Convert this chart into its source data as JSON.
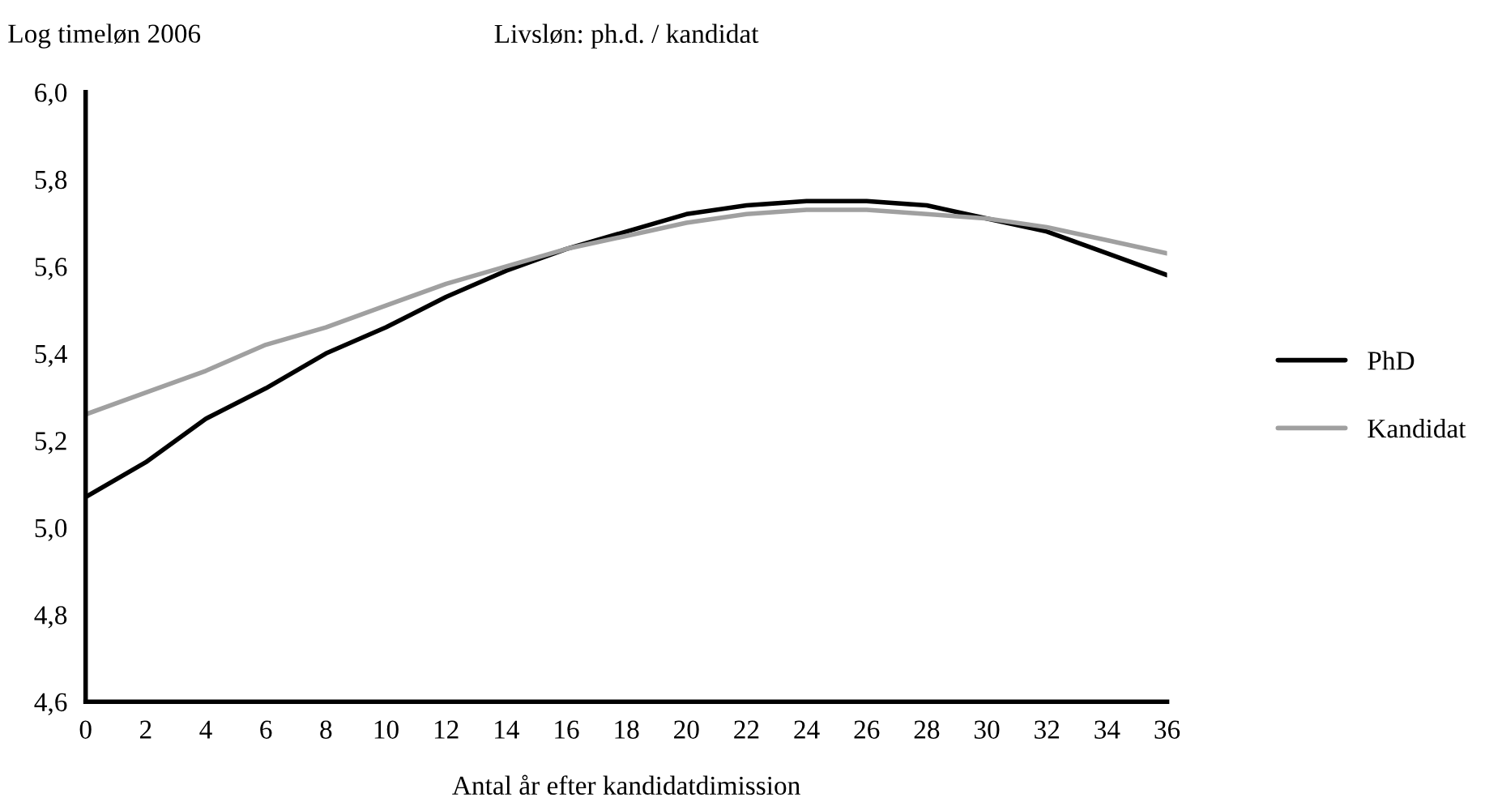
{
  "chart_data": {
    "type": "line",
    "title": "Livsløn: ph.d. / kandidat",
    "ylabel": "Log timeløn 2006",
    "xlabel": "Antal år efter kandidatdimission",
    "x": [
      0,
      2,
      4,
      6,
      8,
      10,
      12,
      14,
      16,
      18,
      20,
      22,
      24,
      26,
      28,
      30,
      32,
      34,
      36
    ],
    "series": [
      {
        "name": "PhD",
        "color": "#000000",
        "values": [
          5.07,
          5.15,
          5.25,
          5.32,
          5.4,
          5.46,
          5.53,
          5.59,
          5.64,
          5.68,
          5.72,
          5.74,
          5.75,
          5.75,
          5.74,
          5.71,
          5.68,
          5.63,
          5.58
        ]
      },
      {
        "name": "Kandidat",
        "color": "#a0a0a0",
        "values": [
          5.26,
          5.31,
          5.36,
          5.42,
          5.46,
          5.51,
          5.56,
          5.6,
          5.64,
          5.67,
          5.7,
          5.72,
          5.73,
          5.73,
          5.72,
          5.71,
          5.69,
          5.66,
          5.63
        ]
      }
    ],
    "xlim": [
      0,
      36
    ],
    "xticks": [
      0,
      2,
      4,
      6,
      8,
      10,
      12,
      14,
      16,
      18,
      20,
      22,
      24,
      26,
      28,
      30,
      32,
      34,
      36
    ],
    "ylim": [
      4.6,
      6.0
    ],
    "yticks": [
      {
        "value": 4.6,
        "label": "4,6"
      },
      {
        "value": 4.8,
        "label": "4,8"
      },
      {
        "value": 5.0,
        "label": "5,0"
      },
      {
        "value": 5.2,
        "label": "5,2"
      },
      {
        "value": 5.4,
        "label": "5,4"
      },
      {
        "value": 5.6,
        "label": "5,6"
      },
      {
        "value": 5.8,
        "label": "5,8"
      },
      {
        "value": 6.0,
        "label": "6,0"
      }
    ],
    "grid": false,
    "legend": "right",
    "marker": "none",
    "line_style": "solid"
  }
}
